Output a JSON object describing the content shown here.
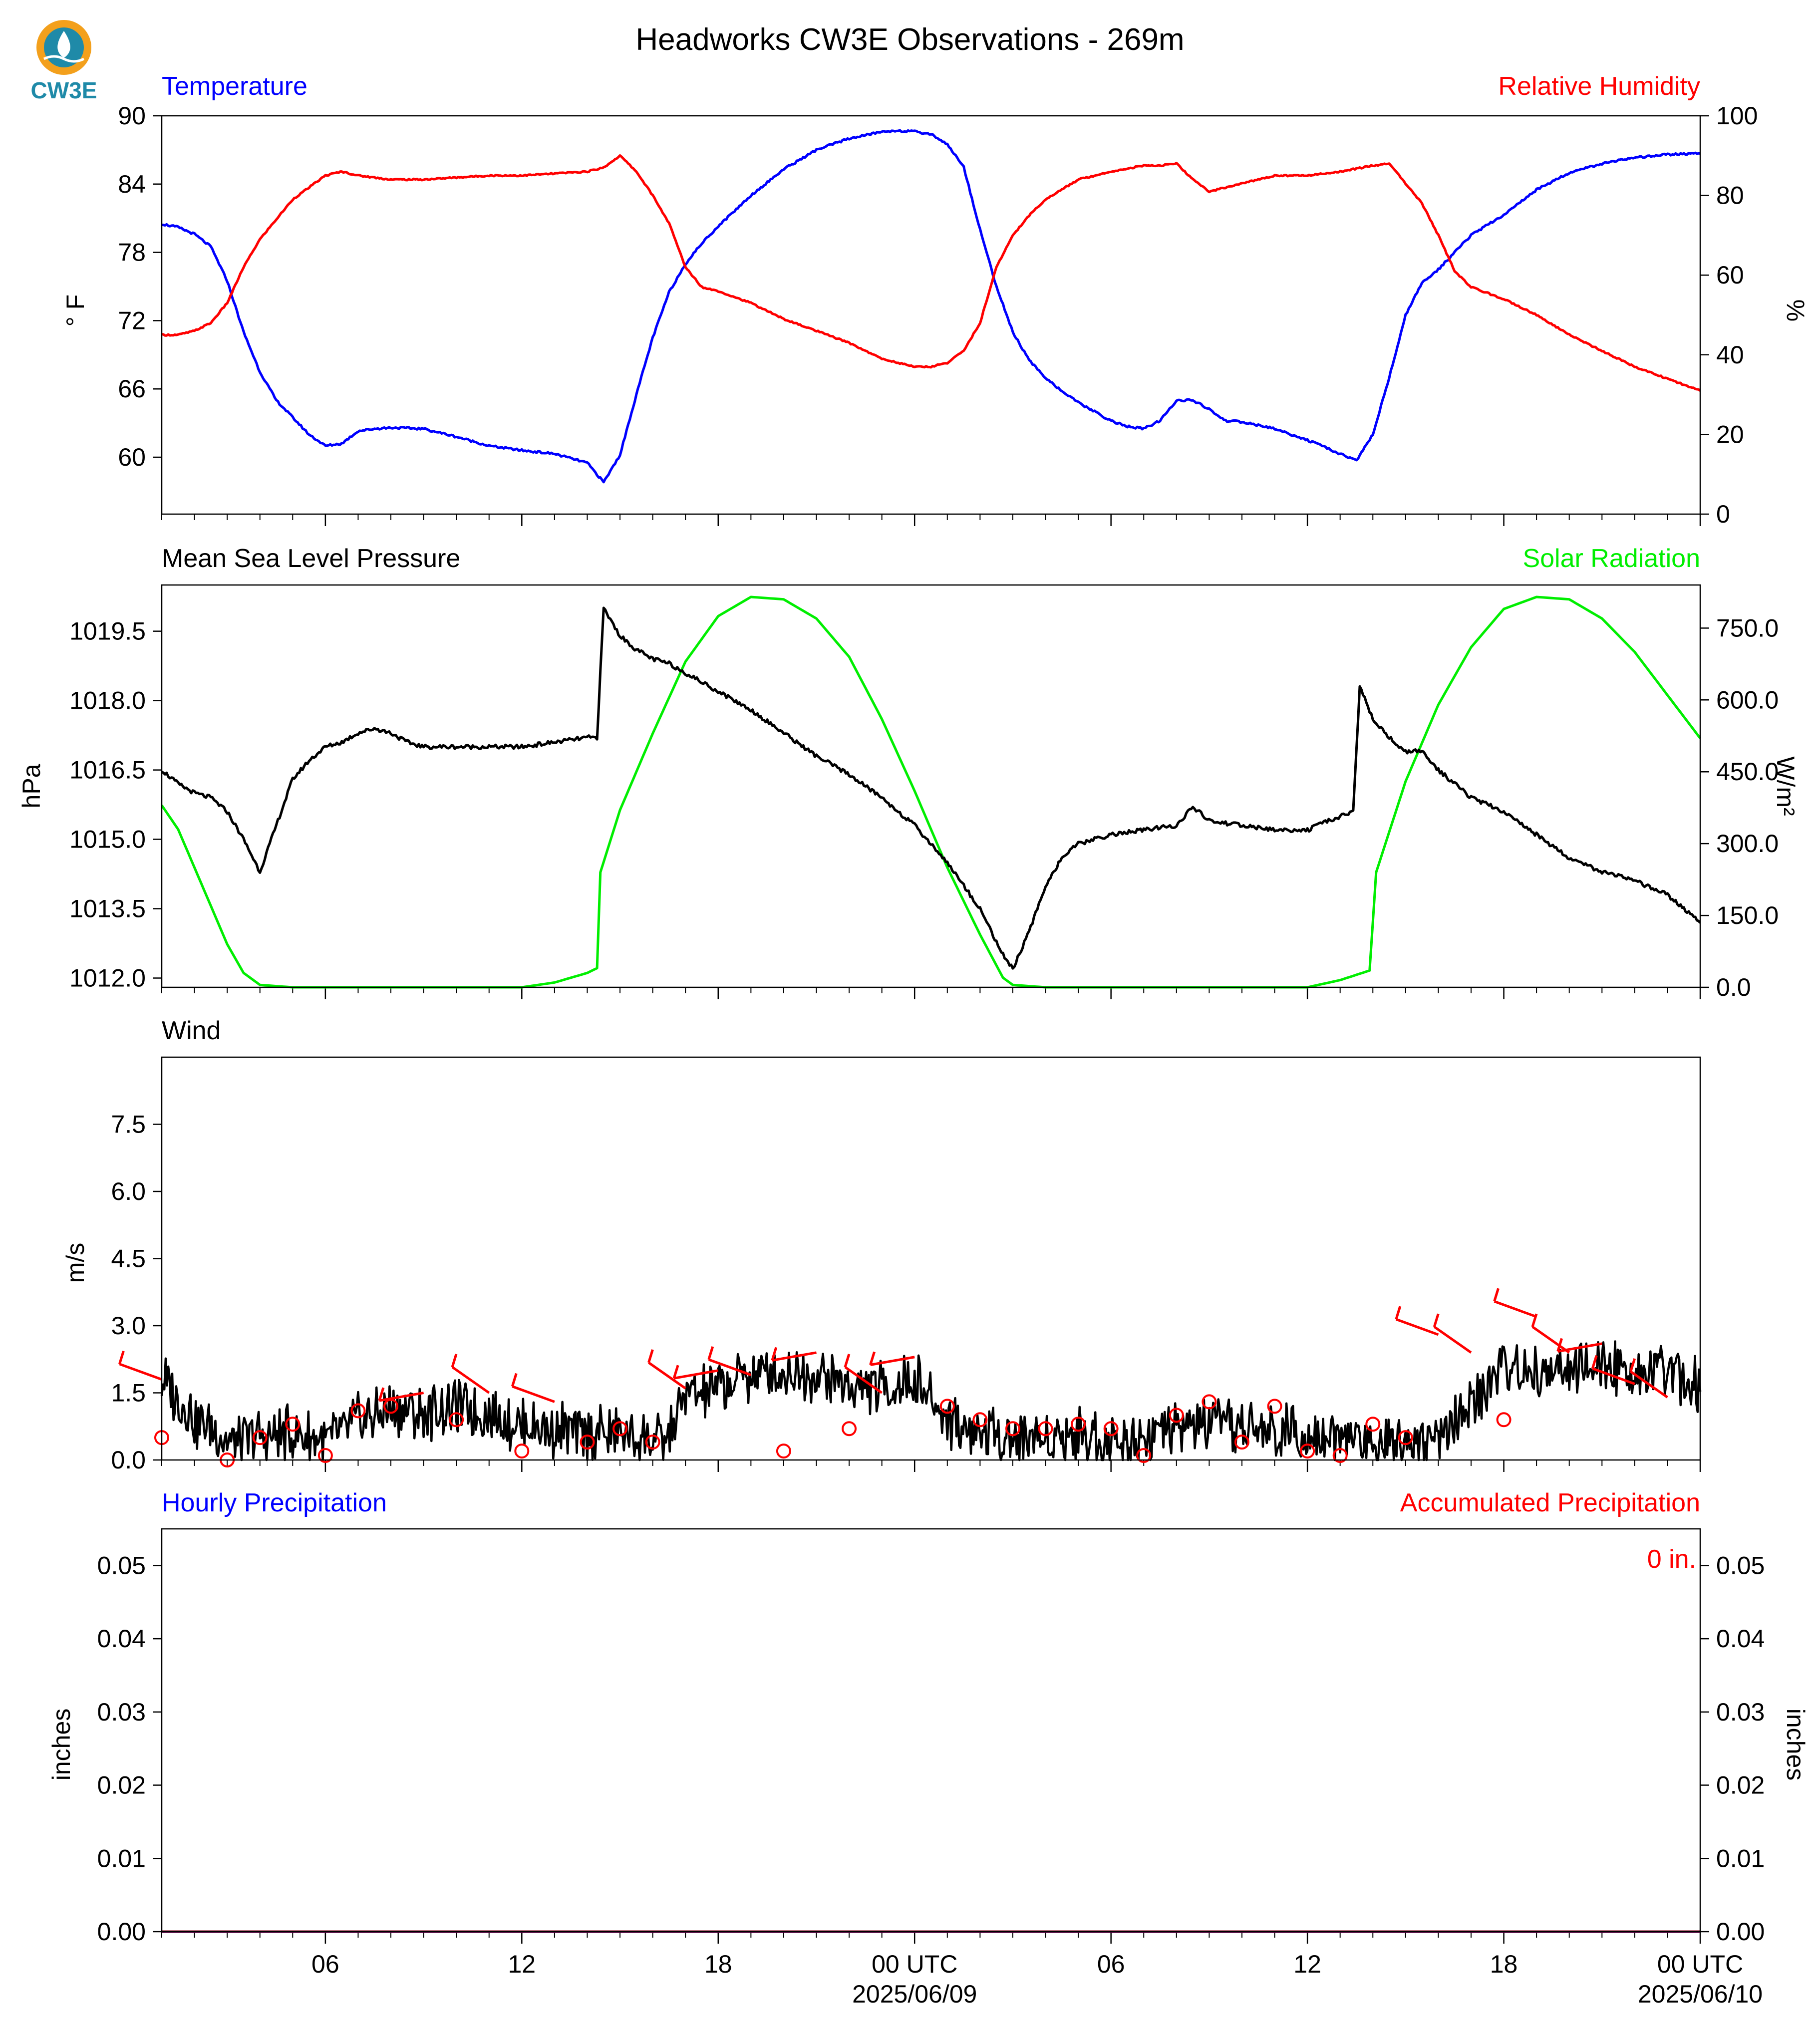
{
  "title": "Headworks CW3E Observations - 269m",
  "logo": {
    "text": "CW3E",
    "colors": {
      "orange": "#f3a01c",
      "teal": "#1f8aa8"
    }
  },
  "time_axis": {
    "start_hour": 1,
    "end_hour": 48,
    "minor_step_hours": 1,
    "major_ticks": [
      {
        "hour": 6,
        "label": "06",
        "sub": ""
      },
      {
        "hour": 12,
        "label": "12",
        "sub": ""
      },
      {
        "hour": 18,
        "label": "18",
        "sub": ""
      },
      {
        "hour": 24,
        "label": "00 UTC",
        "sub": "2025/06/09"
      },
      {
        "hour": 30,
        "label": "06",
        "sub": ""
      },
      {
        "hour": 36,
        "label": "12",
        "sub": ""
      },
      {
        "hour": 42,
        "label": "18",
        "sub": ""
      },
      {
        "hour": 48,
        "label": "00 UTC",
        "sub": "2025/06/10"
      }
    ]
  },
  "colors": {
    "temperature": "#0000ff",
    "humidity": "#ff0000",
    "pressure": "#000000",
    "solar": "#00ee00",
    "wind": "#000000",
    "barb": "#ff0000",
    "precip_hourly": "#0000ff",
    "precip_accum": "#ff0000"
  },
  "chart_data": [
    {
      "id": "temp_rh",
      "type": "line",
      "left_label": "Temperature",
      "right_label": "Relative Humidity",
      "ylabel_left": "° F",
      "ylabel_right": "%",
      "ylim_left": [
        55,
        90
      ],
      "ylim_right": [
        0,
        100
      ],
      "yticks_left": [
        60,
        66,
        72,
        78,
        84,
        90
      ],
      "yticks_right": [
        0,
        20,
        40,
        60,
        80,
        100
      ],
      "series": [
        {
          "name": "Temperature",
          "axis": "left",
          "x": [
            1,
            1.5,
            2,
            2.5,
            3,
            3.5,
            4,
            4.5,
            5,
            5.5,
            6,
            6.5,
            7,
            7.5,
            8,
            9,
            10,
            11,
            12,
            13,
            14,
            14.5,
            15,
            15.5,
            16,
            16.5,
            17,
            17.5,
            18,
            19,
            20,
            21,
            22,
            23,
            23.5,
            24,
            24.5,
            25,
            25.5,
            26,
            26.5,
            27,
            27.5,
            28,
            28.5,
            29,
            29.5,
            30,
            30.5,
            31,
            31.5,
            32,
            32.5,
            33,
            33.5,
            34,
            35,
            36,
            37,
            37.5,
            38,
            38.5,
            39,
            39.5,
            40,
            40.5,
            41,
            42,
            43,
            44,
            45,
            46,
            47,
            48
          ],
          "values": [
            80.5,
            80.2,
            79.6,
            78.5,
            75.5,
            71,
            67.5,
            65,
            63.5,
            62,
            61,
            61.2,
            62.3,
            62.5,
            62.6,
            62.5,
            61.8,
            61,
            60.6,
            60.3,
            59.5,
            57.8,
            60.2,
            65.5,
            70.5,
            74.5,
            77,
            78.8,
            80.3,
            83,
            85.3,
            87,
            88,
            88.6,
            88.7,
            88.6,
            88.4,
            87.5,
            85.5,
            80,
            75,
            71,
            68.5,
            67,
            65.8,
            64.8,
            64,
            63.2,
            62.7,
            62.5,
            63.2,
            65,
            65,
            64.2,
            63.2,
            63.1,
            62.5,
            61.5,
            60.3,
            59.7,
            62,
            67,
            72.5,
            75.3,
            76.5,
            78,
            79.5,
            81.3,
            83.5,
            85,
            85.8,
            86.3,
            86.6,
            86.7
          ]
        },
        {
          "name": "Relative Humidity",
          "axis": "right",
          "x": [
            1,
            1.5,
            2,
            2.5,
            3,
            3.5,
            4,
            4.5,
            5,
            6,
            6.5,
            7,
            8,
            9,
            10,
            11,
            12,
            13,
            14,
            14.5,
            15,
            15.5,
            16,
            16.5,
            17,
            17.5,
            18,
            19,
            20,
            21,
            22,
            23,
            24,
            24.5,
            25,
            25.5,
            26,
            26.5,
            27,
            27.5,
            28,
            29,
            30,
            31,
            31.5,
            32,
            32.5,
            33,
            34,
            35,
            36,
            37,
            38,
            38.5,
            39,
            39.5,
            40,
            40.5,
            41,
            42,
            43,
            44,
            45,
            46,
            47,
            48
          ],
          "values": [
            45,
            45,
            46,
            48,
            53,
            62,
            69,
            74,
            79,
            85,
            86,
            85,
            84,
            84,
            84.5,
            85,
            85,
            85.5,
            86,
            87,
            90,
            86,
            80,
            73,
            62,
            57,
            56,
            53,
            49,
            46,
            43,
            39,
            37,
            37,
            38,
            41,
            48,
            62,
            70,
            75,
            79,
            84,
            86,
            87.5,
            87.5,
            88,
            84,
            81,
            83,
            85,
            85,
            86,
            87.5,
            88,
            83,
            78,
            70,
            61,
            57,
            54,
            50,
            45,
            41,
            37,
            34,
            31
          ]
        }
      ]
    },
    {
      "id": "pressure_solar",
      "type": "line",
      "left_label": "Mean Sea Level Pressure",
      "right_label": "Solar Radiation",
      "ylabel_left": "hPa",
      "ylabel_right": "W/m²",
      "ylim_left": [
        1011.8,
        1020.5
      ],
      "ylim_right": [
        0,
        840
      ],
      "yticks_left": [
        1012.0,
        1013.5,
        1015.0,
        1016.5,
        1018.0,
        1019.5
      ],
      "yticks_right": [
        0,
        150,
        300,
        450,
        600,
        750
      ],
      "series": [
        {
          "name": "Mean Sea Level Pressure",
          "axis": "left",
          "x": [
            1,
            1.5,
            2,
            2.5,
            3,
            3.5,
            4,
            4.5,
            5,
            5.5,
            6,
            6.5,
            7,
            7.5,
            8,
            8.5,
            9,
            9.5,
            10,
            11,
            12,
            13,
            14,
            14.3,
            14.5,
            15,
            15.5,
            16,
            16.5,
            17,
            17.5,
            18,
            19,
            20,
            21,
            22,
            23,
            24,
            25,
            26,
            26.7,
            27,
            27.5,
            28,
            28.5,
            29,
            30,
            31,
            32,
            32.5,
            33,
            34,
            35,
            36,
            37,
            37.4,
            37.6,
            38,
            38.5,
            39,
            39.5,
            40,
            41,
            42,
            43,
            44,
            45,
            46,
            47,
            48
          ],
          "values": [
            1016.5,
            1016.2,
            1016.0,
            1015.9,
            1015.6,
            1015.0,
            1014.3,
            1015.3,
            1016.3,
            1016.7,
            1017.0,
            1017.1,
            1017.3,
            1017.4,
            1017.3,
            1017.1,
            1017.0,
            1017.0,
            1017.0,
            1017.0,
            1017.0,
            1017.1,
            1017.2,
            1017.2,
            1020.0,
            1019.4,
            1019.1,
            1018.9,
            1018.8,
            1018.6,
            1018.4,
            1018.2,
            1017.8,
            1017.3,
            1016.8,
            1016.4,
            1015.9,
            1015.3,
            1014.5,
            1013.5,
            1012.5,
            1012.2,
            1013.0,
            1014.0,
            1014.6,
            1014.9,
            1015.1,
            1015.2,
            1015.3,
            1015.7,
            1015.4,
            1015.3,
            1015.2,
            1015.2,
            1015.5,
            1015.6,
            1018.3,
            1017.6,
            1017.2,
            1016.9,
            1016.9,
            1016.5,
            1015.9,
            1015.6,
            1015.1,
            1014.6,
            1014.3,
            1014.1,
            1013.8,
            1013.2
          ]
        },
        {
          "name": "Solar Radiation",
          "axis": "right",
          "x": [
            1,
            1.5,
            2,
            2.5,
            3,
            3.5,
            4,
            5,
            6,
            8,
            10,
            12,
            13,
            14,
            14.3,
            14.4,
            15,
            16,
            17,
            18,
            19,
            20,
            21,
            22,
            23,
            24,
            25,
            26,
            26.7,
            27,
            28,
            30,
            32,
            34,
            36,
            37,
            37.9,
            38.1,
            39,
            40,
            41,
            42,
            43,
            44,
            45,
            46,
            47,
            48
          ],
          "values": [
            380,
            330,
            250,
            170,
            90,
            30,
            5,
            0,
            0,
            0,
            0,
            0,
            10,
            30,
            40,
            240,
            370,
            530,
            680,
            775,
            815,
            810,
            770,
            690,
            560,
            410,
            250,
            110,
            20,
            5,
            0,
            0,
            0,
            0,
            0,
            15,
            35,
            240,
            430,
            590,
            710,
            790,
            815,
            810,
            770,
            700,
            610,
            520
          ]
        }
      ]
    },
    {
      "id": "wind",
      "type": "line",
      "left_label": "Wind",
      "ylabel_left": "m/s",
      "ylim_left": [
        0,
        9
      ],
      "yticks_left": [
        0.0,
        1.5,
        3.0,
        4.5,
        6.0,
        7.5
      ],
      "series": [
        {
          "name": "Wind speed",
          "axis": "left",
          "x": [
            1,
            2,
            3,
            4,
            5,
            6,
            7,
            8,
            9,
            10,
            11,
            12,
            13,
            14,
            15,
            16,
            16.5,
            17,
            18,
            19,
            20,
            21,
            22,
            23,
            24,
            25,
            26,
            27,
            28,
            29,
            30,
            31,
            32,
            33,
            34,
            35,
            36,
            37,
            38,
            39,
            40,
            41,
            42,
            43,
            44,
            45,
            46,
            47,
            48
          ],
          "values": [
            1.8,
            0.9,
            0.4,
            0.5,
            0.6,
            0.4,
            0.9,
            1.1,
            1.0,
            1.2,
            1.0,
            0.8,
            0.7,
            0.6,
            0.6,
            0.4,
            0.5,
            1.4,
            1.6,
            1.9,
            2.0,
            1.9,
            1.7,
            1.6,
            1.8,
            0.9,
            0.6,
            0.5,
            0.5,
            0.6,
            0.4,
            0.5,
            0.7,
            0.8,
            0.7,
            0.6,
            0.7,
            0.5,
            0.4,
            0.5,
            0.4,
            1.2,
            2.1,
            1.9,
            2.0,
            2.1,
            2.0,
            1.9,
            1.7
          ]
        }
      ],
      "barbs": [
        {
          "hour": 1,
          "speed": 1.8,
          "calm": false
        },
        {
          "hour": 1,
          "speed": 0.5,
          "calm": true
        },
        {
          "hour": 3,
          "speed": 0.0,
          "calm": true
        },
        {
          "hour": 4,
          "speed": 0.5,
          "calm": true
        },
        {
          "hour": 5,
          "speed": 0.8,
          "calm": true
        },
        {
          "hour": 6,
          "speed": 0.1,
          "calm": true
        },
        {
          "hour": 7,
          "speed": 1.1,
          "calm": true
        },
        {
          "hour": 8,
          "speed": 1.2,
          "calm": true
        },
        {
          "hour": 9,
          "speed": 1.5,
          "calm": false
        },
        {
          "hour": 10,
          "speed": 0.9,
          "calm": true
        },
        {
          "hour": 11,
          "speed": 1.5,
          "calm": false
        },
        {
          "hour": 12,
          "speed": 0.2,
          "calm": true
        },
        {
          "hour": 13,
          "speed": 1.3,
          "calm": false
        },
        {
          "hour": 14,
          "speed": 0.4,
          "calm": true
        },
        {
          "hour": 15,
          "speed": 0.7,
          "calm": true
        },
        {
          "hour": 16,
          "speed": 0.4,
          "calm": true
        },
        {
          "hour": 17,
          "speed": 1.6,
          "calm": false
        },
        {
          "hour": 18,
          "speed": 2.0,
          "calm": false
        },
        {
          "hour": 19,
          "speed": 1.9,
          "calm": false
        },
        {
          "hour": 20,
          "speed": 0.2,
          "calm": true
        },
        {
          "hour": 21,
          "speed": 2.4,
          "calm": false
        },
        {
          "hour": 22,
          "speed": 0.7,
          "calm": true
        },
        {
          "hour": 23,
          "speed": 1.5,
          "calm": false
        },
        {
          "hour": 24,
          "speed": 2.3,
          "calm": false
        },
        {
          "hour": 25,
          "speed": 1.2,
          "calm": true
        },
        {
          "hour": 26,
          "speed": 0.9,
          "calm": true
        },
        {
          "hour": 27,
          "speed": 0.7,
          "calm": true
        },
        {
          "hour": 28,
          "speed": 0.7,
          "calm": true
        },
        {
          "hour": 29,
          "speed": 0.8,
          "calm": true
        },
        {
          "hour": 30,
          "speed": 0.7,
          "calm": true
        },
        {
          "hour": 31,
          "speed": 0.1,
          "calm": true
        },
        {
          "hour": 32,
          "speed": 1.0,
          "calm": true
        },
        {
          "hour": 33,
          "speed": 1.3,
          "calm": true
        },
        {
          "hour": 34,
          "speed": 0.4,
          "calm": true
        },
        {
          "hour": 35,
          "speed": 1.2,
          "calm": true
        },
        {
          "hour": 36,
          "speed": 0.2,
          "calm": true
        },
        {
          "hour": 37,
          "speed": 0.1,
          "calm": true
        },
        {
          "hour": 38,
          "speed": 0.8,
          "calm": true
        },
        {
          "hour": 39,
          "speed": 0.5,
          "calm": true
        },
        {
          "hour": 40,
          "speed": 2.8,
          "calm": false
        },
        {
          "hour": 41,
          "speed": 2.4,
          "calm": false
        },
        {
          "hour": 42,
          "speed": 0.9,
          "calm": true
        },
        {
          "hour": 43,
          "speed": 3.2,
          "calm": false
        },
        {
          "hour": 44,
          "speed": 2.4,
          "calm": false
        },
        {
          "hour": 45,
          "speed": 2.6,
          "calm": false
        },
        {
          "hour": 46,
          "speed": 1.7,
          "calm": false
        },
        {
          "hour": 47,
          "speed": 1.4,
          "calm": false
        }
      ]
    },
    {
      "id": "precip",
      "type": "line",
      "left_label": "Hourly Precipitation",
      "right_label": "Accumulated Precipitation",
      "ylabel_left": "inches",
      "ylabel_right": "inches",
      "ylim_left": [
        0,
        0.055
      ],
      "ylim_right": [
        0,
        0.055
      ],
      "yticks_left": [
        0.0,
        0.01,
        0.02,
        0.03,
        0.04,
        0.05
      ],
      "yticks_right": [
        0.0,
        0.01,
        0.02,
        0.03,
        0.04,
        0.05
      ],
      "tick_format": "0.00",
      "annotation": "0 in.",
      "series": [
        {
          "name": "Hourly Precipitation",
          "axis": "left",
          "x": [
            1,
            48
          ],
          "values": [
            0,
            0
          ]
        },
        {
          "name": "Accumulated Precipitation",
          "axis": "right",
          "x": [
            1,
            48
          ],
          "values": [
            0,
            0
          ]
        }
      ]
    }
  ]
}
